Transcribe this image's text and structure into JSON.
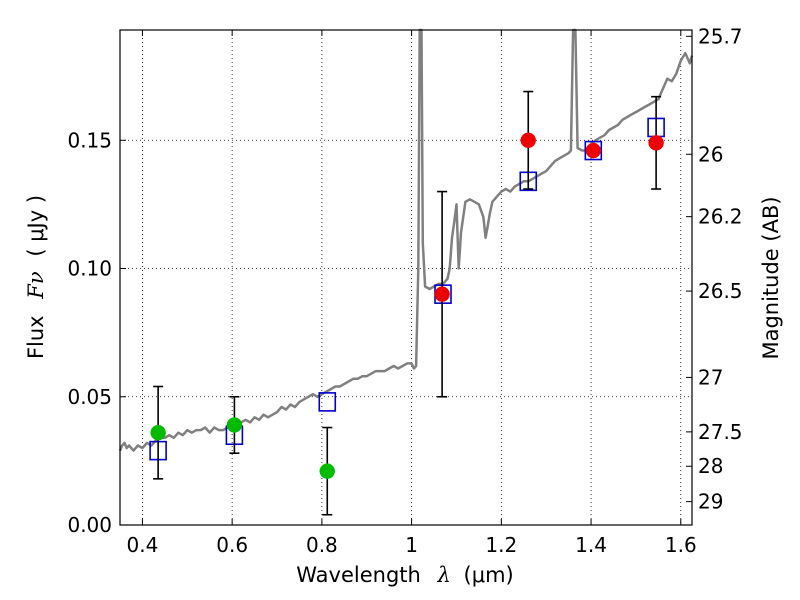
{
  "chart_data": {
    "type": "scatter",
    "title": "",
    "xlabel": "Wavelength",
    "xlabel_math": "λ",
    "xlabel_unit": "(μm)",
    "ylabel": "Flux",
    "ylabel_math": "Fν",
    "ylabel_unit": "( μJy )",
    "ylabel_right": "Magnitude (AB)",
    "xlim": [
      0.35,
      1.625
    ],
    "ylim": [
      0.0,
      0.193
    ],
    "grid": true,
    "x_ticks": [
      {
        "value": 0.4,
        "label": "0.4"
      },
      {
        "value": 0.6,
        "label": "0.6"
      },
      {
        "value": 0.8,
        "label": "0.8"
      },
      {
        "value": 1.0,
        "label": "1"
      },
      {
        "value": 1.2,
        "label": "1.2"
      },
      {
        "value": 1.4,
        "label": "1.4"
      },
      {
        "value": 1.6,
        "label": "1.6"
      }
    ],
    "y_ticks": [
      {
        "value": 0.0,
        "label": "0.00"
      },
      {
        "value": 0.05,
        "label": "0.05"
      },
      {
        "value": 0.1,
        "label": "0.10"
      },
      {
        "value": 0.15,
        "label": "0.15"
      }
    ],
    "mag_ticks": [
      {
        "value": 25.7,
        "label": "25.7"
      },
      {
        "value": 26.0,
        "label": "26"
      },
      {
        "value": 26.2,
        "label": "26.2"
      },
      {
        "value": 26.5,
        "label": "26.5"
      },
      {
        "value": 27.0,
        "label": "27"
      },
      {
        "value": 27.5,
        "label": "27.5"
      },
      {
        "value": 28.0,
        "label": "28"
      },
      {
        "value": 29.0,
        "label": "29"
      }
    ],
    "spectrum": {
      "color": "#808080",
      "points": [
        [
          0.35,
          0.029
        ],
        [
          0.355,
          0.031
        ],
        [
          0.36,
          0.032
        ],
        [
          0.365,
          0.03
        ],
        [
          0.37,
          0.031
        ],
        [
          0.38,
          0.029
        ],
        [
          0.39,
          0.031
        ],
        [
          0.4,
          0.03
        ],
        [
          0.41,
          0.032
        ],
        [
          0.42,
          0.031
        ],
        [
          0.43,
          0.033
        ],
        [
          0.44,
          0.034
        ],
        [
          0.45,
          0.034
        ],
        [
          0.46,
          0.035
        ],
        [
          0.47,
          0.034
        ],
        [
          0.48,
          0.036
        ],
        [
          0.49,
          0.035
        ],
        [
          0.5,
          0.037
        ],
        [
          0.51,
          0.036
        ],
        [
          0.52,
          0.037
        ],
        [
          0.53,
          0.037
        ],
        [
          0.54,
          0.038
        ],
        [
          0.55,
          0.036
        ],
        [
          0.56,
          0.038
        ],
        [
          0.57,
          0.037
        ],
        [
          0.58,
          0.037
        ],
        [
          0.59,
          0.038
        ],
        [
          0.6,
          0.038
        ],
        [
          0.61,
          0.039
        ],
        [
          0.62,
          0.04
        ],
        [
          0.63,
          0.041
        ],
        [
          0.64,
          0.04
        ],
        [
          0.65,
          0.042
        ],
        [
          0.66,
          0.041
        ],
        [
          0.67,
          0.043
        ],
        [
          0.68,
          0.042
        ],
        [
          0.69,
          0.043
        ],
        [
          0.7,
          0.044
        ],
        [
          0.71,
          0.046
        ],
        [
          0.72,
          0.045
        ],
        [
          0.73,
          0.047
        ],
        [
          0.74,
          0.046
        ],
        [
          0.75,
          0.048
        ],
        [
          0.76,
          0.049
        ],
        [
          0.77,
          0.05
        ],
        [
          0.78,
          0.051
        ],
        [
          0.79,
          0.05
        ],
        [
          0.8,
          0.051
        ],
        [
          0.81,
          0.052
        ],
        [
          0.82,
          0.053
        ],
        [
          0.83,
          0.054
        ],
        [
          0.84,
          0.054
        ],
        [
          0.85,
          0.055
        ],
        [
          0.86,
          0.056
        ],
        [
          0.87,
          0.057
        ],
        [
          0.88,
          0.057
        ],
        [
          0.89,
          0.058
        ],
        [
          0.9,
          0.058
        ],
        [
          0.91,
          0.059
        ],
        [
          0.92,
          0.06
        ],
        [
          0.93,
          0.06
        ],
        [
          0.94,
          0.06
        ],
        [
          0.95,
          0.061
        ],
        [
          0.96,
          0.062
        ],
        [
          0.97,
          0.061
        ],
        [
          0.98,
          0.062
        ],
        [
          0.99,
          0.063
        ],
        [
          1.0,
          0.063
        ],
        [
          1.005,
          0.061
        ],
        [
          1.01,
          0.062
        ],
        [
          1.015,
          0.1
        ],
        [
          1.018,
          0.193
        ],
        [
          1.022,
          0.193
        ],
        [
          1.025,
          0.11
        ],
        [
          1.03,
          0.093
        ],
        [
          1.04,
          0.092
        ],
        [
          1.05,
          0.093
        ],
        [
          1.06,
          0.094
        ],
        [
          1.07,
          0.094
        ],
        [
          1.08,
          0.096
        ],
        [
          1.085,
          0.1
        ],
        [
          1.09,
          0.112
        ],
        [
          1.095,
          0.118
        ],
        [
          1.1,
          0.125
        ],
        [
          1.105,
          0.1
        ],
        [
          1.11,
          0.114
        ],
        [
          1.12,
          0.126
        ],
        [
          1.13,
          0.127
        ],
        [
          1.14,
          0.126
        ],
        [
          1.15,
          0.125
        ],
        [
          1.16,
          0.12
        ],
        [
          1.165,
          0.112
        ],
        [
          1.17,
          0.117
        ],
        [
          1.175,
          0.122
        ],
        [
          1.18,
          0.126
        ],
        [
          1.19,
          0.128
        ],
        [
          1.2,
          0.13
        ],
        [
          1.21,
          0.131
        ],
        [
          1.22,
          0.13
        ],
        [
          1.23,
          0.132
        ],
        [
          1.24,
          0.133
        ],
        [
          1.25,
          0.134
        ],
        [
          1.26,
          0.134
        ],
        [
          1.27,
          0.135
        ],
        [
          1.28,
          0.136
        ],
        [
          1.29,
          0.137
        ],
        [
          1.3,
          0.138
        ],
        [
          1.31,
          0.14
        ],
        [
          1.32,
          0.142
        ],
        [
          1.33,
          0.143
        ],
        [
          1.34,
          0.144
        ],
        [
          1.35,
          0.145
        ],
        [
          1.355,
          0.146
        ],
        [
          1.36,
          0.193
        ],
        [
          1.365,
          0.193
        ],
        [
          1.37,
          0.147
        ],
        [
          1.38,
          0.146
        ],
        [
          1.39,
          0.146
        ],
        [
          1.4,
          0.148
        ],
        [
          1.41,
          0.15
        ],
        [
          1.42,
          0.151
        ],
        [
          1.43,
          0.152
        ],
        [
          1.44,
          0.154
        ],
        [
          1.45,
          0.155
        ],
        [
          1.46,
          0.156
        ],
        [
          1.47,
          0.158
        ],
        [
          1.48,
          0.159
        ],
        [
          1.49,
          0.16
        ],
        [
          1.5,
          0.161
        ],
        [
          1.51,
          0.162
        ],
        [
          1.52,
          0.163
        ],
        [
          1.53,
          0.164
        ],
        [
          1.54,
          0.165
        ],
        [
          1.55,
          0.166
        ],
        [
          1.56,
          0.17
        ],
        [
          1.57,
          0.174
        ],
        [
          1.58,
          0.173
        ],
        [
          1.59,
          0.176
        ],
        [
          1.6,
          0.181
        ],
        [
          1.61,
          0.184
        ],
        [
          1.62,
          0.18
        ],
        [
          1.625,
          0.183
        ]
      ]
    },
    "model_photometry": {
      "color": "#0000cc",
      "points": [
        {
          "x": 0.435,
          "y": 0.029
        },
        {
          "x": 0.605,
          "y": 0.035
        },
        {
          "x": 0.812,
          "y": 0.048
        },
        {
          "x": 1.07,
          "y": 0.09
        },
        {
          "x": 1.26,
          "y": 0.134
        },
        {
          "x": 1.405,
          "y": 0.146
        },
        {
          "x": 1.545,
          "y": 0.155
        }
      ]
    },
    "series": [
      {
        "color": "#00bb00",
        "points": [
          {
            "x": 0.435,
            "y": 0.036,
            "err": 0.018
          },
          {
            "x": 0.605,
            "y": 0.039,
            "err": 0.011
          },
          {
            "x": 0.812,
            "y": 0.021,
            "err": 0.017
          }
        ]
      },
      {
        "color": "#ee0000",
        "points": [
          {
            "x": 1.068,
            "y": 0.09,
            "err": 0.04
          },
          {
            "x": 1.26,
            "y": 0.15,
            "err": 0.019
          },
          {
            "x": 1.405,
            "y": 0.146,
            "err": 0.0
          },
          {
            "x": 1.545,
            "y": 0.149,
            "err": 0.018
          }
        ]
      }
    ]
  }
}
